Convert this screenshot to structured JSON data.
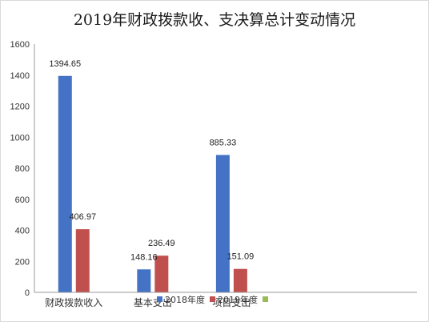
{
  "chart_data": {
    "type": "bar",
    "title": "2019年财政拨款收、支决算总计变动情况",
    "categories": [
      "财政拨款收入",
      "基本支出",
      "项目支出"
    ],
    "series": [
      {
        "name": "2018年度",
        "values": [
          1394.65,
          148.16,
          885.33
        ],
        "color": "#4472c4"
      },
      {
        "name": "2019年度",
        "values": [
          406.97,
          236.49,
          151.09
        ],
        "color": "#c0504d"
      },
      {
        "name": "",
        "values": [
          null,
          null,
          null
        ],
        "color": "#9bbb59"
      }
    ],
    "ylim": [
      0,
      1600
    ],
    "yticks": [
      0,
      200,
      400,
      600,
      800,
      1000,
      1200,
      1400,
      1600
    ],
    "xlabel": "",
    "ylabel": "",
    "grid": false,
    "legend_position": "bottom"
  }
}
